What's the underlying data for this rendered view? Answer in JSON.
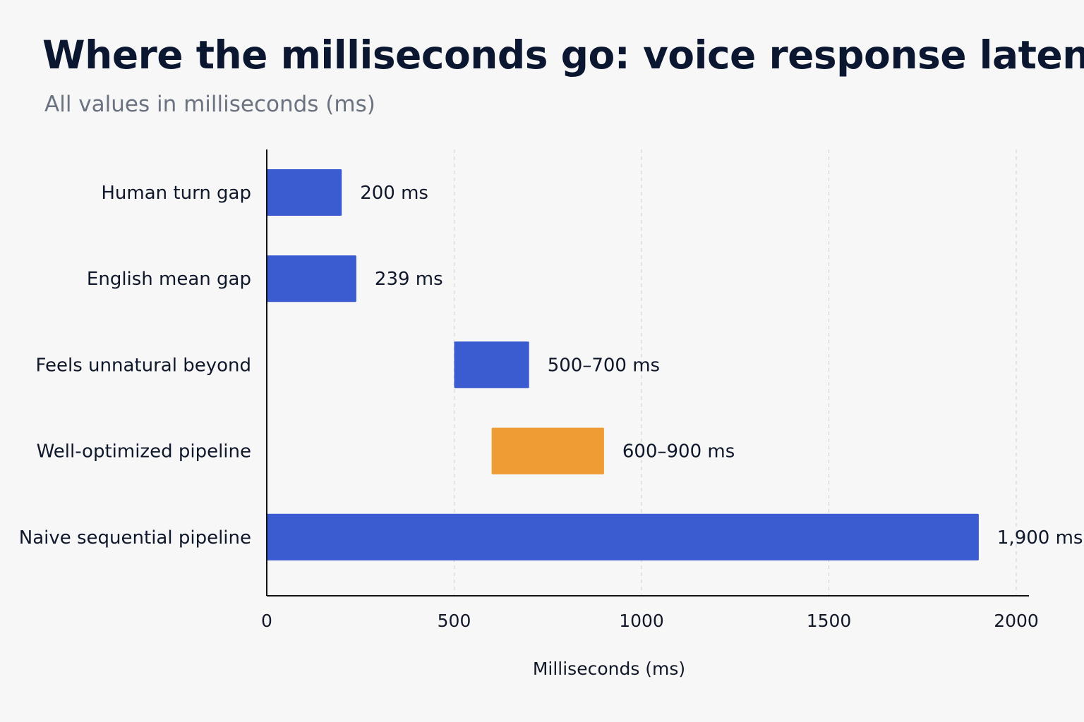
{
  "chart_data": {
    "type": "bar",
    "orientation": "horizontal",
    "title": "Where the milliseconds go: voice response latency",
    "subtitle": "All values in milliseconds (ms)",
    "xlabel": "Milliseconds (ms)",
    "ylabel": "",
    "xlim": [
      0,
      2000
    ],
    "xticks": [
      "0",
      "500",
      "1000",
      "1500",
      "2000"
    ],
    "grid": "vertical dashed",
    "categories": [
      "Human turn gap",
      "English mean gap",
      "Feels unnatural beyond",
      "Well-optimized pipeline",
      "Naive sequential pipeline"
    ],
    "bars": [
      {
        "start": 0,
        "end": 200,
        "label": "200 ms",
        "color": "#3b5bd1"
      },
      {
        "start": 0,
        "end": 239,
        "label": "239 ms",
        "color": "#3b5bd1"
      },
      {
        "start": 500,
        "end": 700,
        "label": "500–700 ms",
        "color": "#3b5bd1"
      },
      {
        "start": 600,
        "end": 900,
        "label": "600–900 ms",
        "color": "#ed9d33"
      },
      {
        "start": 0,
        "end": 1900,
        "label": "1,900 ms",
        "color": "#3b5bd1"
      }
    ]
  }
}
